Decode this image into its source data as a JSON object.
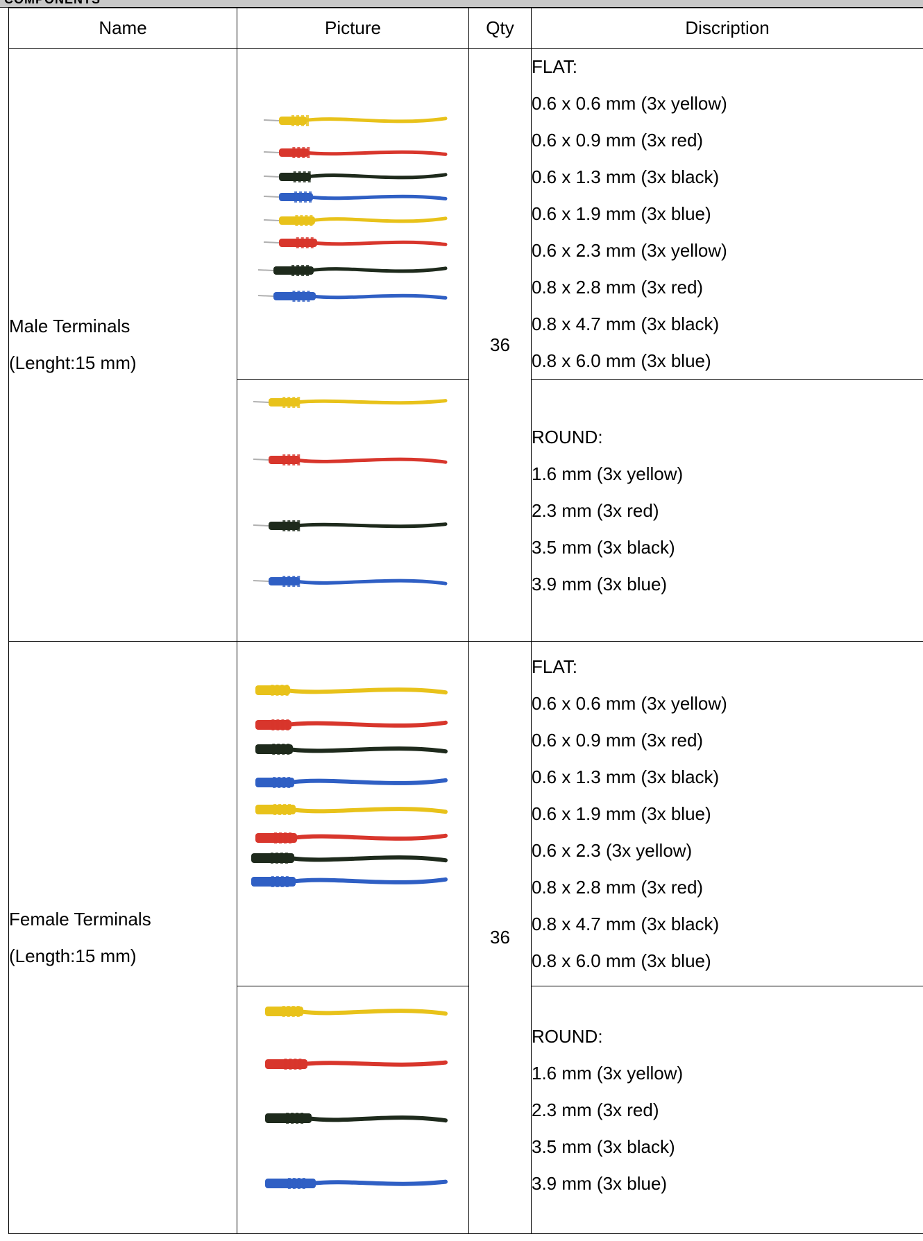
{
  "section_title": "COMPONENTS",
  "table": {
    "headers": {
      "name": "Name",
      "picture": "Picture",
      "qty": "Qty",
      "description": "Discription"
    },
    "groups": [
      {
        "name_line1": "Male Terminals",
        "name_line2": "(Lenght:15 mm)",
        "qty": "36",
        "flat": [
          "FLAT:",
          "0.6 x 0.6 mm (3x yellow)",
          "0.6 x 0.9 mm (3x red)",
          "0.6 x 1.3 mm (3x black)",
          "0.6 x 1.9 mm (3x blue)",
          "0.6 x 2.3 mm (3x yellow)",
          "0.8 x 2.8 mm (3x red)",
          "0.8 x 4.7 mm (3x black)",
          "0.8 x 6.0 mm (3x blue)"
        ],
        "round": [
          "ROUND:",
          "1.6 mm (3x yellow)",
          "2.3 mm (3x red)",
          "3.5 mm (3x black)",
          "3.9 mm (3x blue)"
        ]
      },
      {
        "name_line1": "Female Terminals",
        "name_line2": "(Length:15 mm)",
        "qty": "36",
        "flat": [
          "FLAT:",
          "0.6 x 0.6 mm (3x yellow)",
          "0.6 x 0.9 mm (3x red)",
          "0.6 x 1.3 mm (3x black)",
          "0.6 x 1.9 mm (3x blue)",
          "0.6 x 2.3 (3x yellow)",
          "0.8 x 2.8 mm (3x red)",
          "0.8 x 4.7 mm (3x black)",
          "0.8 x 6.0 mm (3x blue)"
        ],
        "round": [
          "ROUND:",
          "1.6 mm (3x yellow)",
          "2.3 mm (3x red)",
          "3.5 mm (3x black)",
          "3.9 mm (3x blue)"
        ]
      }
    ]
  },
  "wire_colors": {
    "yellow": "#e8c21a",
    "red": "#d8362c",
    "black": "#1e2a1c",
    "blue": "#2f5fc4"
  },
  "icons": [
    "male-flat-terminals-photo",
    "male-round-terminals-photo",
    "female-flat-terminals-photo",
    "female-round-terminals-photo"
  ]
}
